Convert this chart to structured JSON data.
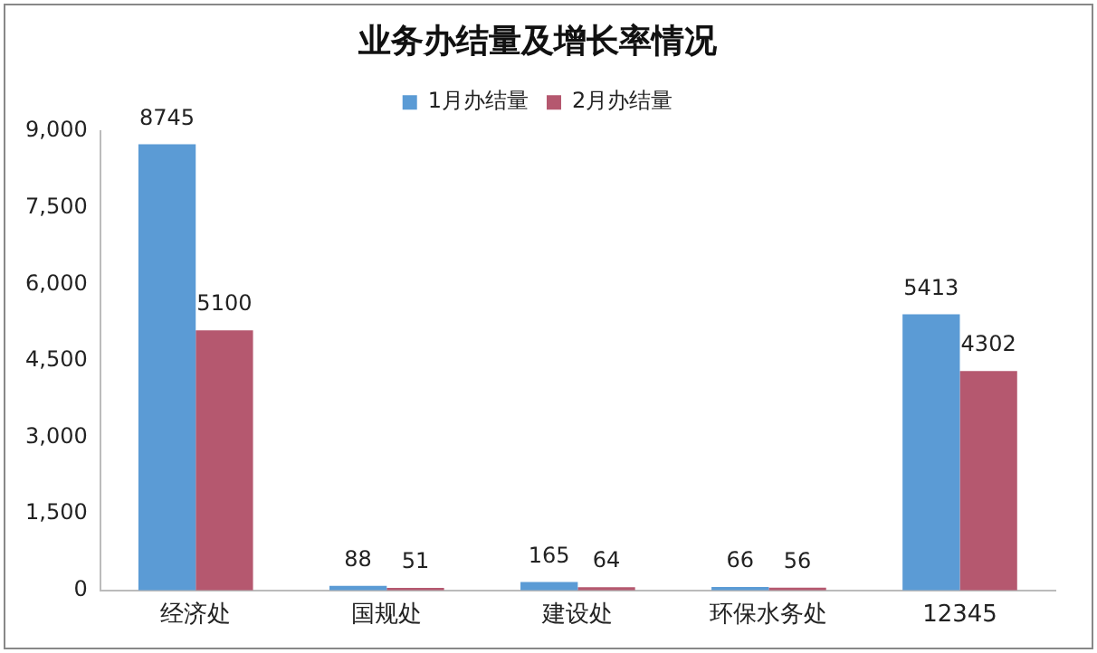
{
  "chart_data": {
    "type": "bar",
    "title": "业务办结量及增长率情况",
    "categories": [
      "经济处",
      "国规处",
      "建设处",
      "环保水务处",
      "12345"
    ],
    "series": [
      {
        "name": "1月办结量",
        "color": "#5b9bd5",
        "values": [
          8745,
          88,
          165,
          66,
          5413
        ]
      },
      {
        "name": "2月办结量",
        "color": "#b5586f",
        "values": [
          5100,
          51,
          64,
          56,
          4302
        ]
      }
    ],
    "ylim": [
      0,
      9000
    ],
    "yticks": [
      {
        "value": 0,
        "label": "0"
      },
      {
        "value": 1500,
        "label": "1,500"
      },
      {
        "value": 3000,
        "label": "3,000"
      },
      {
        "value": 4500,
        "label": "4,500"
      },
      {
        "value": 6000,
        "label": "6,000"
      },
      {
        "value": 7500,
        "label": "7,500"
      },
      {
        "value": 9000,
        "label": "9,000"
      }
    ],
    "grid": false,
    "legend": "top",
    "data_labels": true
  }
}
